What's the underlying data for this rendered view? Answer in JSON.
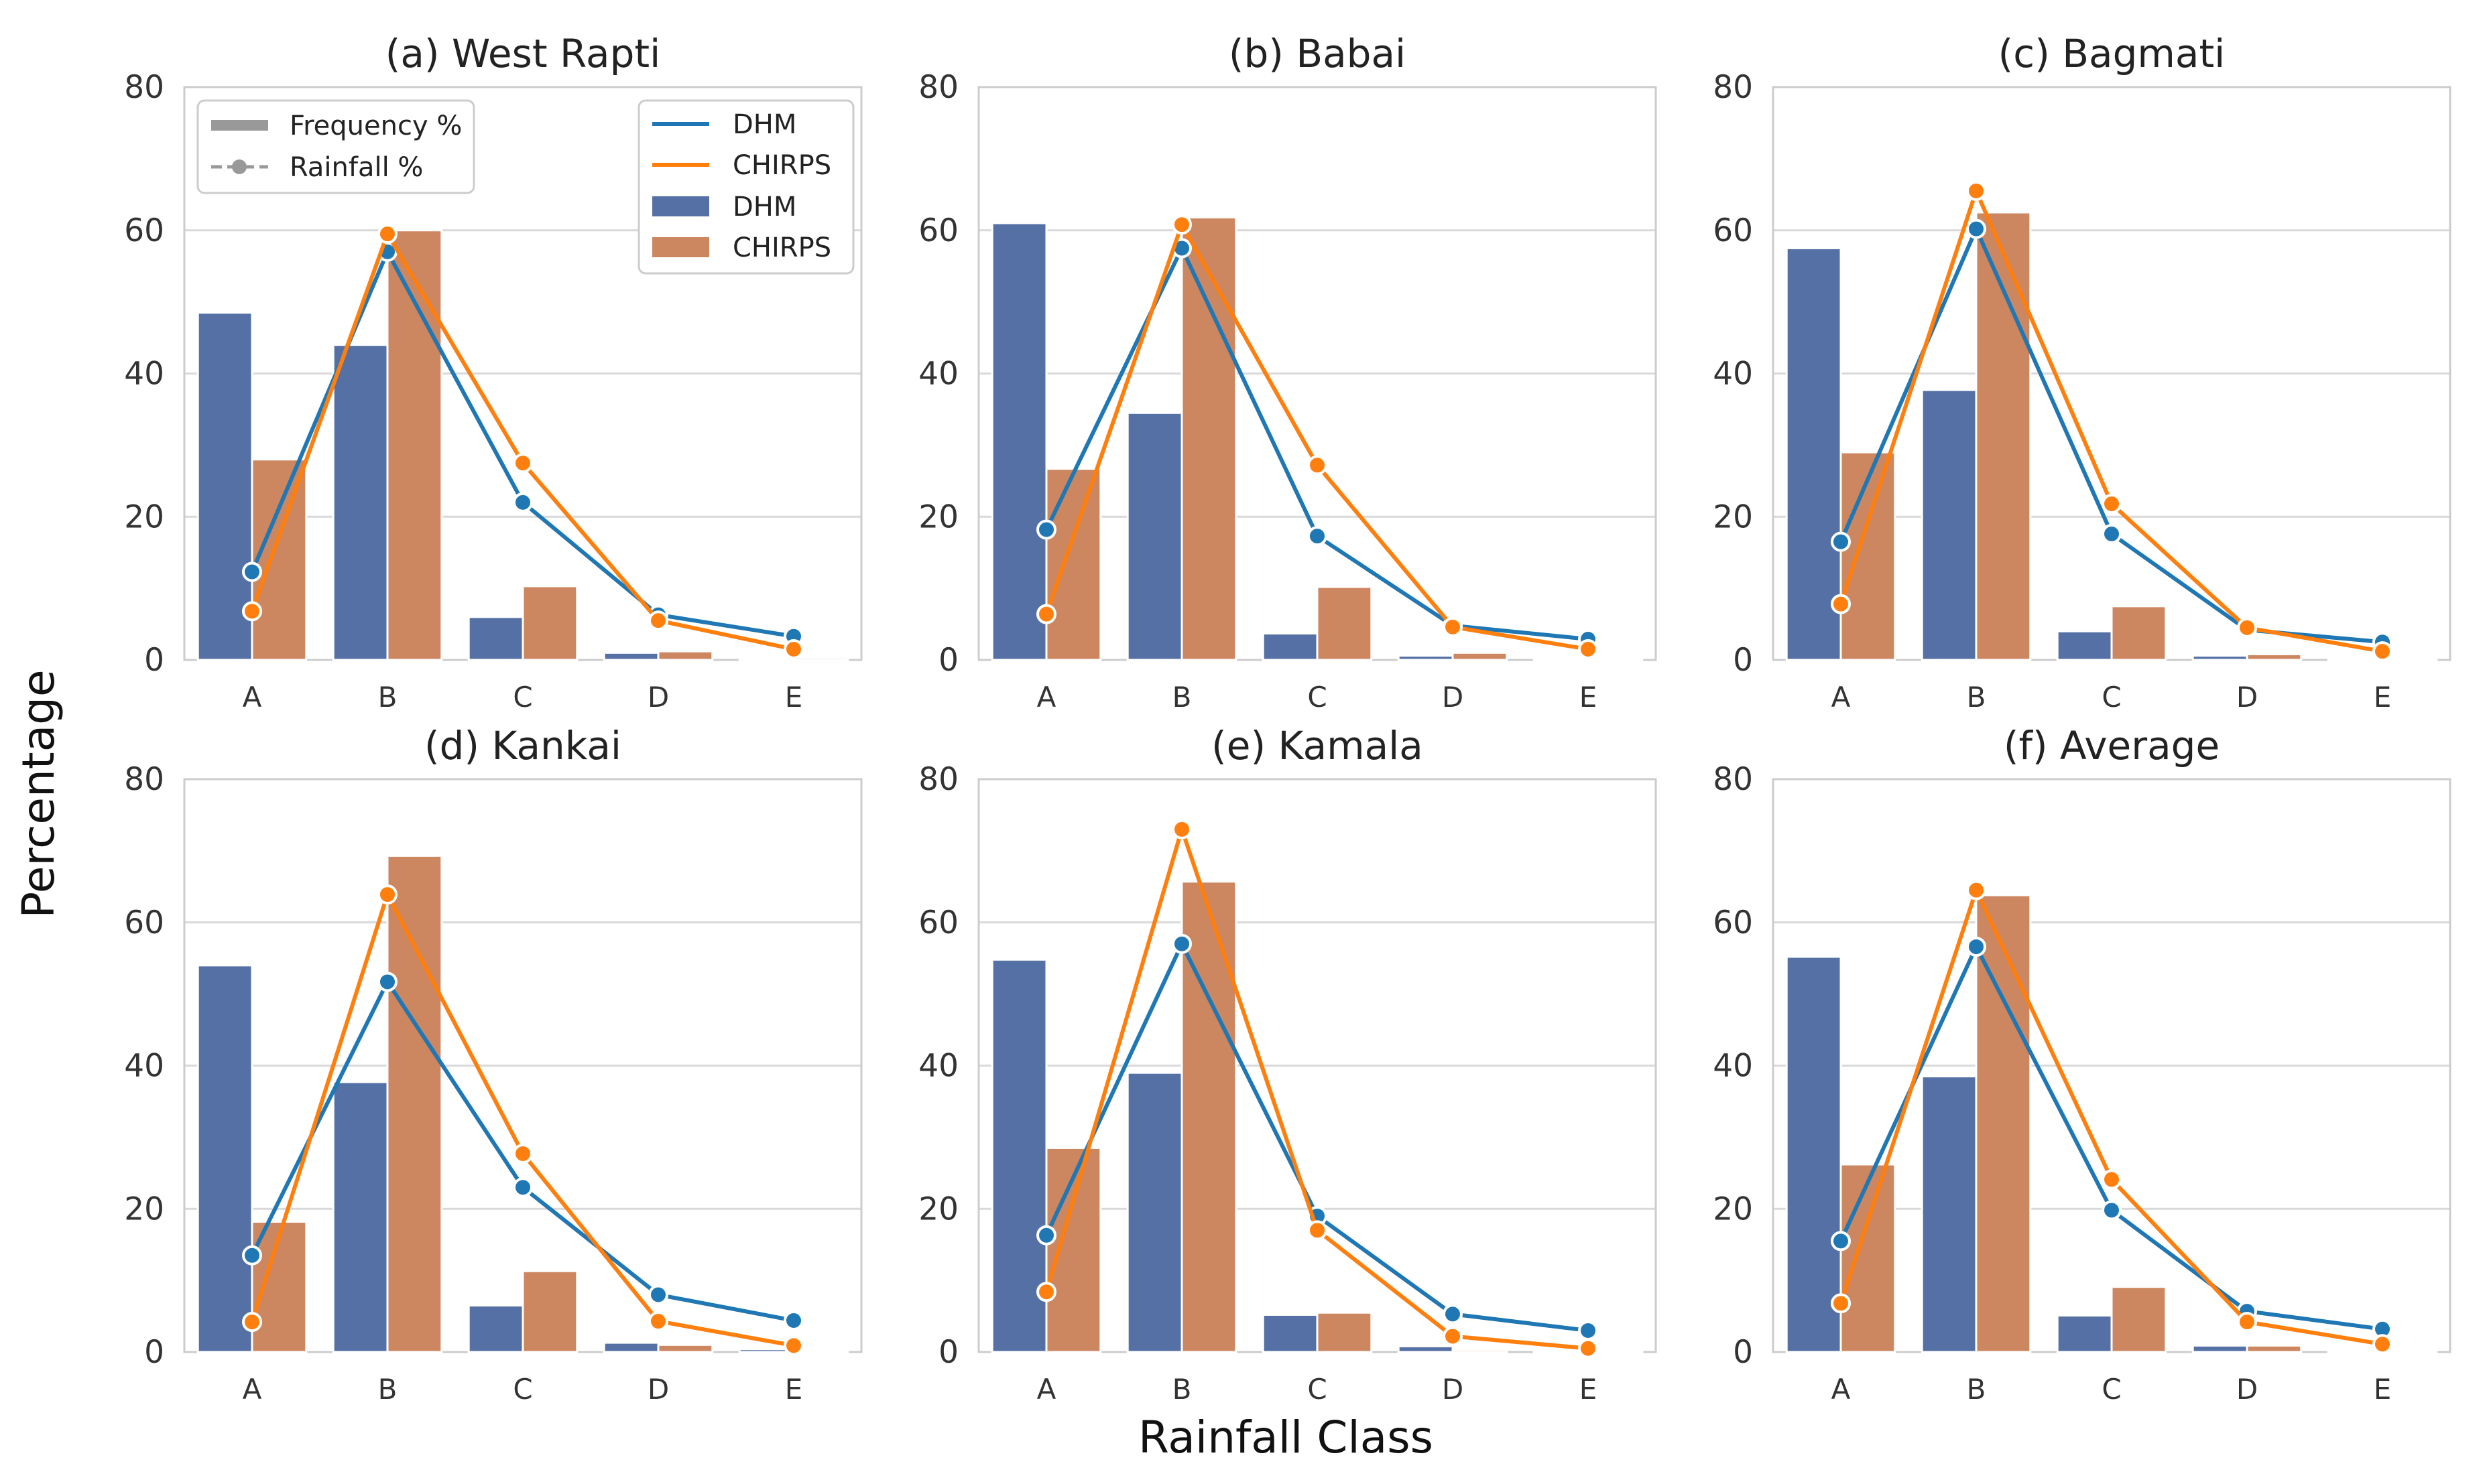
{
  "figure": {
    "ylabel": "Percentage",
    "xlabel": "Rainfall Class"
  },
  "colors": {
    "dhm_line": "#1f77b4",
    "chirps_line": "#ff7f0e",
    "dhm_bar": "#5470a4",
    "chirps_bar": "#cc8660"
  },
  "legend_style": {
    "frequency_label": "Frequency %",
    "rainfall_label": "Rainfall %"
  },
  "legend_series": {
    "line_dhm": "DHM",
    "line_chirps": "CHIRPS",
    "bar_dhm": "DHM",
    "bar_chirps": "CHIRPS"
  },
  "chart_data": [
    {
      "type": "bar",
      "title": "(a) West Rapti",
      "categories": [
        "A",
        "B",
        "C",
        "D",
        "E"
      ],
      "ylim": [
        0,
        80
      ],
      "yticks": [
        "0",
        "20",
        "40",
        "60",
        "80"
      ],
      "series": [
        {
          "name": "DHM",
          "kind": "bar",
          "metric": "Frequency %",
          "values": [
            48.5,
            44,
            6,
            1,
            0.2
          ]
        },
        {
          "name": "CHIRPS",
          "kind": "bar",
          "metric": "Frequency %",
          "values": [
            28,
            60,
            10.3,
            1.2,
            0.3
          ]
        },
        {
          "name": "DHM",
          "kind": "line",
          "metric": "Rainfall %",
          "values": [
            12.3,
            57,
            22,
            6.3,
            3.3
          ]
        },
        {
          "name": "CHIRPS",
          "kind": "line",
          "metric": "Rainfall %",
          "values": [
            6.8,
            59.5,
            27.5,
            5.5,
            1.5
          ]
        }
      ]
    },
    {
      "type": "bar",
      "title": "(b) Babai",
      "categories": [
        "A",
        "B",
        "C",
        "D",
        "E"
      ],
      "ylim": [
        0,
        80
      ],
      "yticks": [
        "0",
        "20",
        "40",
        "60",
        "80"
      ],
      "series": [
        {
          "name": "DHM",
          "kind": "bar",
          "metric": "Frequency %",
          "values": [
            61,
            34.5,
            3.7,
            0.6,
            0.1
          ]
        },
        {
          "name": "CHIRPS",
          "kind": "bar",
          "metric": "Frequency %",
          "values": [
            26.7,
            61.8,
            10.2,
            1.0,
            0.2
          ]
        },
        {
          "name": "DHM",
          "kind": "line",
          "metric": "Rainfall %",
          "values": [
            18.2,
            57.5,
            17.3,
            4.8,
            2.9
          ]
        },
        {
          "name": "CHIRPS",
          "kind": "line",
          "metric": "Rainfall %",
          "values": [
            6.4,
            60.8,
            27.2,
            4.6,
            1.5
          ]
        }
      ]
    },
    {
      "type": "bar",
      "title": "(c) Bagmati",
      "categories": [
        "A",
        "B",
        "C",
        "D",
        "E"
      ],
      "ylim": [
        0,
        80
      ],
      "yticks": [
        "0",
        "20",
        "40",
        "60",
        "80"
      ],
      "series": [
        {
          "name": "DHM",
          "kind": "bar",
          "metric": "Frequency %",
          "values": [
            57.5,
            37.7,
            4,
            0.6,
            0.1
          ]
        },
        {
          "name": "CHIRPS",
          "kind": "bar",
          "metric": "Frequency %",
          "values": [
            29,
            62.5,
            7.5,
            0.8,
            0.1
          ]
        },
        {
          "name": "DHM",
          "kind": "line",
          "metric": "Rainfall %",
          "values": [
            16.5,
            60.2,
            17.6,
            4.2,
            2.5
          ]
        },
        {
          "name": "CHIRPS",
          "kind": "line",
          "metric": "Rainfall %",
          "values": [
            7.8,
            65.5,
            21.8,
            4.5,
            1.2
          ]
        }
      ]
    },
    {
      "type": "bar",
      "title": "(d) Kankai",
      "categories": [
        "A",
        "B",
        "C",
        "D",
        "E"
      ],
      "ylim": [
        0,
        80
      ],
      "yticks": [
        "0",
        "20",
        "40",
        "60",
        "80"
      ],
      "series": [
        {
          "name": "DHM",
          "kind": "bar",
          "metric": "Frequency %",
          "values": [
            54,
            37.7,
            6.5,
            1.3,
            0.4
          ]
        },
        {
          "name": "CHIRPS",
          "kind": "bar",
          "metric": "Frequency %",
          "values": [
            18.2,
            69.3,
            11.3,
            1.0,
            0.2
          ]
        },
        {
          "name": "DHM",
          "kind": "line",
          "metric": "Rainfall %",
          "values": [
            13.5,
            51.7,
            23,
            8,
            4.4
          ]
        },
        {
          "name": "CHIRPS",
          "kind": "line",
          "metric": "Rainfall %",
          "values": [
            4.2,
            63.9,
            27.7,
            4.3,
            0.9
          ]
        }
      ]
    },
    {
      "type": "bar",
      "title": "(e) Kamala",
      "categories": [
        "A",
        "B",
        "C",
        "D",
        "E"
      ],
      "ylim": [
        0,
        80
      ],
      "yticks": [
        "0",
        "20",
        "40",
        "60",
        "80"
      ],
      "series": [
        {
          "name": "DHM",
          "kind": "bar",
          "metric": "Frequency %",
          "values": [
            54.8,
            39,
            5.2,
            0.8,
            0.1
          ]
        },
        {
          "name": "CHIRPS",
          "kind": "bar",
          "metric": "Frequency %",
          "values": [
            28.5,
            65.7,
            5.5,
            0.3,
            0.1
          ]
        },
        {
          "name": "DHM",
          "kind": "line",
          "metric": "Rainfall %",
          "values": [
            16.3,
            57,
            19,
            5.3,
            3
          ]
        },
        {
          "name": "CHIRPS",
          "kind": "line",
          "metric": "Rainfall %",
          "values": [
            8.4,
            73,
            17,
            2.2,
            0.5
          ]
        }
      ]
    },
    {
      "type": "bar",
      "title": "(f) Average",
      "categories": [
        "A",
        "B",
        "C",
        "D",
        "E"
      ],
      "ylim": [
        0,
        80
      ],
      "yticks": [
        "0",
        "20",
        "40",
        "60",
        "80"
      ],
      "series": [
        {
          "name": "DHM",
          "kind": "bar",
          "metric": "Frequency %",
          "values": [
            55.2,
            38.5,
            5.1,
            0.9,
            0.2
          ]
        },
        {
          "name": "CHIRPS",
          "kind": "bar",
          "metric": "Frequency %",
          "values": [
            26.2,
            63.8,
            9.1,
            0.9,
            0.2
          ]
        },
        {
          "name": "DHM",
          "kind": "line",
          "metric": "Rainfall %",
          "values": [
            15.5,
            56.6,
            19.8,
            5.7,
            3.2
          ]
        },
        {
          "name": "CHIRPS",
          "kind": "line",
          "metric": "Rainfall %",
          "values": [
            6.8,
            64.5,
            24.1,
            4.2,
            1.1
          ]
        }
      ]
    }
  ]
}
